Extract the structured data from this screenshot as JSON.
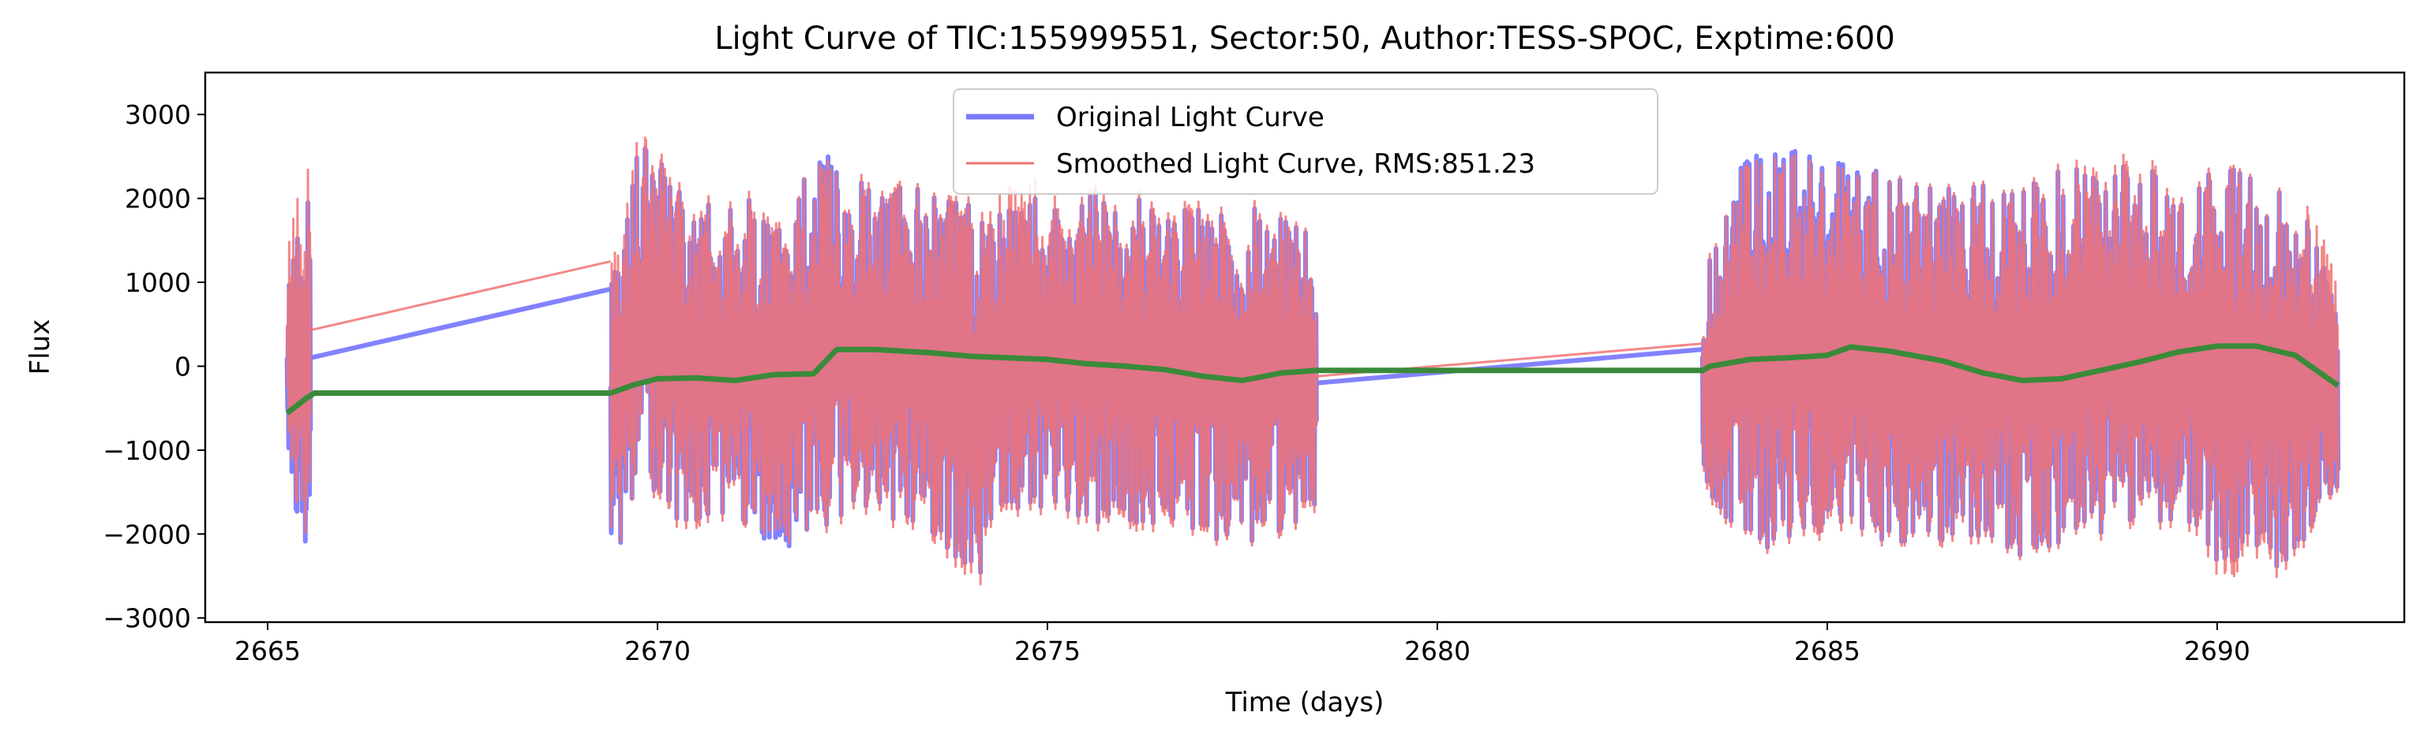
{
  "chart_data": {
    "type": "line",
    "title": "Light Curve of TIC:155999551, Sector:50, Author:TESS-SPOC, Exptime:600",
    "xlabel": "Time (days)",
    "ylabel": "Flux",
    "xlim": [
      2664.2,
      2692.4
    ],
    "ylim": [
      -3050,
      3500
    ],
    "x_ticks": [
      2665,
      2670,
      2675,
      2680,
      2685,
      2690
    ],
    "y_ticks": [
      -3000,
      -2000,
      -1000,
      0,
      1000,
      2000,
      3000
    ],
    "x_tick_labels": [
      "2665",
      "2670",
      "2675",
      "2680",
      "2685",
      "2690"
    ],
    "y_tick_labels": [
      "−3000",
      "−2000",
      "−1000",
      "0",
      "1000",
      "2000",
      "3000"
    ],
    "grid": false,
    "legend_position": "upper center",
    "segments": [
      {
        "x_start": 2665.25,
        "x_end": 2665.55
      },
      {
        "x_start": 2669.4,
        "x_end": 2678.45
      },
      {
        "x_start": 2683.4,
        "x_end": 2691.55
      }
    ],
    "series": [
      {
        "name": "Original Light Curve",
        "color": "#7b7bff",
        "style": "thick",
        "envelope": [
          [
            2665.25,
            -1400,
            1000
          ],
          [
            2665.55,
            -2400,
            2200
          ],
          [
            2669.4,
            -2350,
            1000
          ],
          [
            2669.85,
            -1700,
            3050
          ],
          [
            2670.5,
            -1900,
            1900
          ],
          [
            2671.0,
            -1800,
            2000
          ],
          [
            2671.5,
            -2300,
            1950
          ],
          [
            2672.2,
            -2000,
            2550
          ],
          [
            2672.5,
            -1700,
            2200
          ],
          [
            2673.5,
            -2000,
            2100
          ],
          [
            2674.1,
            -2600,
            1900
          ],
          [
            2674.5,
            -1700,
            2000
          ],
          [
            2675.5,
            -1900,
            2200
          ],
          [
            2676.5,
            -1900,
            1900
          ],
          [
            2677.5,
            -2150,
            1900
          ],
          [
            2678.45,
            -1800,
            1800
          ],
          [
            2683.4,
            -1400,
            1000
          ],
          [
            2684.0,
            -2250,
            2750
          ],
          [
            2684.8,
            -2000,
            2550
          ],
          [
            2685.3,
            -1900,
            2450
          ],
          [
            2686.0,
            -2200,
            2200
          ],
          [
            2686.8,
            -2000,
            2150
          ],
          [
            2687.5,
            -2300,
            2250
          ],
          [
            2688.8,
            -1900,
            2500
          ],
          [
            2689.5,
            -2000,
            2200
          ],
          [
            2690.2,
            -2500,
            2400
          ],
          [
            2691.0,
            -2350,
            2100
          ],
          [
            2691.55,
            -1600,
            1000
          ]
        ],
        "gap_connectors": [
          [
            [
              2665.55,
              100
            ],
            [
              2669.4,
              920
            ]
          ],
          [
            [
              2678.45,
              -200
            ],
            [
              2683.4,
              200
            ]
          ]
        ]
      },
      {
        "name": "Smoothed Light Curve, RMS:851.23",
        "color": "#f27272",
        "style": "thin",
        "envelope": [
          [
            2665.25,
            -1300,
            1550
          ],
          [
            2665.55,
            -2300,
            2580
          ],
          [
            2669.4,
            -2300,
            1250
          ],
          [
            2669.85,
            -1800,
            3200
          ],
          [
            2670.5,
            -2000,
            2000
          ],
          [
            2671.0,
            -1900,
            2100
          ],
          [
            2671.5,
            -2200,
            2050
          ],
          [
            2672.2,
            -2100,
            2500
          ],
          [
            2672.5,
            -1800,
            2300
          ],
          [
            2673.5,
            -2100,
            2150
          ],
          [
            2674.1,
            -2750,
            2000
          ],
          [
            2674.5,
            -1800,
            2300
          ],
          [
            2675.5,
            -2000,
            2300
          ],
          [
            2676.5,
            -2000,
            2000
          ],
          [
            2677.5,
            -2200,
            2000
          ],
          [
            2678.45,
            -1900,
            1850
          ],
          [
            2683.4,
            -1500,
            1100
          ],
          [
            2684.0,
            -2300,
            2700
          ],
          [
            2684.8,
            -2100,
            2500
          ],
          [
            2685.3,
            -2000,
            2400
          ],
          [
            2686.0,
            -2250,
            2250
          ],
          [
            2686.8,
            -2100,
            2200
          ],
          [
            2687.5,
            -2350,
            2300
          ],
          [
            2688.8,
            -2000,
            2650
          ],
          [
            2689.5,
            -2100,
            2300
          ],
          [
            2690.2,
            -2700,
            2450
          ],
          [
            2691.0,
            -2450,
            2150
          ],
          [
            2691.55,
            -1700,
            1500
          ]
        ],
        "gap_connectors": [
          [
            [
              2665.55,
              430
            ],
            [
              2669.4,
              1250
            ]
          ],
          [
            [
              2678.45,
              -120
            ],
            [
              2683.4,
              270
            ]
          ]
        ]
      },
      {
        "name": "",
        "color": "#3a8a3a",
        "style": "trend",
        "x": [
          2665.25,
          2665.5,
          2665.6,
          2669.4,
          2669.7,
          2670.0,
          2670.5,
          2671.0,
          2671.5,
          2672.0,
          2672.3,
          2672.8,
          2673.5,
          2674.0,
          2674.5,
          2675.0,
          2675.5,
          2676.0,
          2676.5,
          2677.0,
          2677.5,
          2678.0,
          2678.45,
          2683.4,
          2683.5,
          2684.0,
          2684.5,
          2685.0,
          2685.3,
          2685.8,
          2686.5,
          2687.0,
          2687.5,
          2688.0,
          2688.5,
          2689.0,
          2689.5,
          2690.0,
          2690.5,
          2691.0,
          2691.55
        ],
        "y": [
          -560,
          -380,
          -320,
          -320,
          -220,
          -150,
          -140,
          -170,
          -100,
          -90,
          200,
          200,
          160,
          120,
          100,
          80,
          30,
          0,
          -40,
          -120,
          -170,
          -80,
          -50,
          -50,
          0,
          80,
          100,
          130,
          230,
          180,
          60,
          -80,
          -170,
          -150,
          -50,
          50,
          170,
          240,
          240,
          130,
          -230
        ]
      }
    ]
  }
}
